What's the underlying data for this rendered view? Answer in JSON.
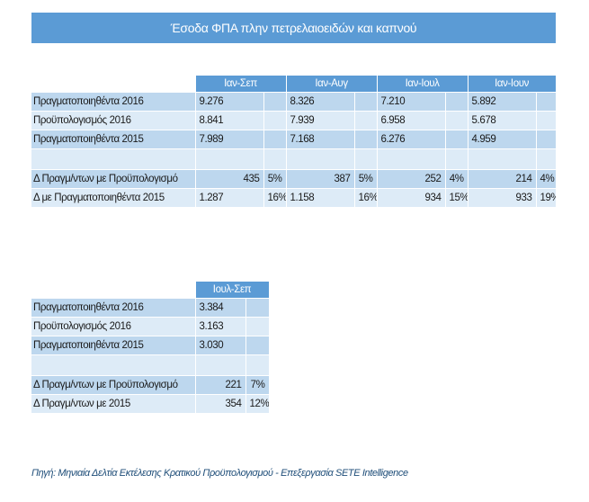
{
  "title": "Έσοδα ΦΠΑ πλην πετρελαιοειδών και καπνού",
  "table1": {
    "headers": [
      "Ιαν-Σεπ",
      "Ιαν-Αυγ",
      "Ιαν-Ιουλ",
      "Ιαν-Ιουν"
    ],
    "rows": [
      {
        "label": "Πραγματοποιηθέντα 2016",
        "values": [
          "9.276",
          "8.326",
          "7.210",
          "5.892"
        ]
      },
      {
        "label": "Προϋπολογισμός 2016",
        "values": [
          "8.841",
          "7.939",
          "6.958",
          "5.678"
        ]
      },
      {
        "label": "Πραγματοποιηθέντα 2015",
        "values": [
          "7.989",
          "7.168",
          "6.276",
          "4.959"
        ]
      }
    ],
    "diff_rows": [
      {
        "label": "Δ Πραγμ/ντων με Προϋπολογισμό",
        "values": [
          "435",
          "387",
          "252",
          "214"
        ],
        "pcts": [
          "5%",
          "5%",
          "4%",
          "4%"
        ]
      },
      {
        "label": "Δ με Πραγματοποιηθέντα 2015",
        "values": [
          "1.287",
          "1.158",
          "934",
          "933"
        ],
        "pcts": [
          "16%",
          "16%",
          "15%",
          "19%"
        ]
      }
    ]
  },
  "table2": {
    "header": "Ιουλ-Σεπ",
    "rows": [
      {
        "label": "Πραγματοποιηθέντα 2016",
        "value": "3.384"
      },
      {
        "label": "Προϋπολογισμός 2016",
        "value": "3.163"
      },
      {
        "label": "Πραγματοποιηθέντα 2015",
        "value": "3.030"
      }
    ],
    "diff_rows": [
      {
        "label": "Δ Πραγμ/ντων με Προϋπολογισμό",
        "value": "221",
        "pct": "7%"
      },
      {
        "label": "Δ Πραγμ/ντων με 2015",
        "value": "354",
        "pct": "12%"
      }
    ]
  },
  "source": "Πηγή: Μηνιαία Δελτία Εκτέλεσης Κρατικού Προϋπολογισμού - Επεξεργασία SETE Intelligence",
  "colors": {
    "header_bg": "#5b9bd5",
    "row_dark": "#bdd7ee",
    "row_light": "#ddebf7",
    "source_text": "#1f4e79"
  }
}
